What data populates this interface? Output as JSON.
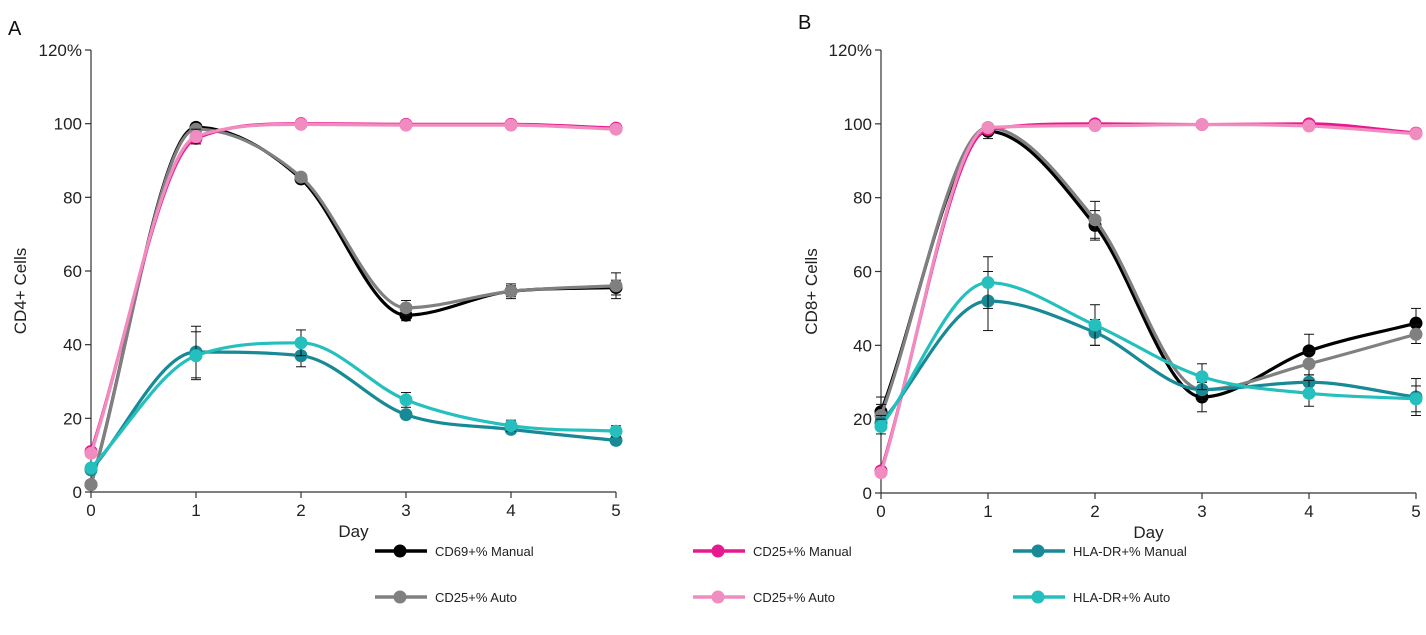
{
  "chart_data": [
    {
      "type": "line",
      "panel_label": "A",
      "xlabel": "Day",
      "ylabel": "CD4+ Cells",
      "x": [
        0,
        1,
        2,
        3,
        4,
        5
      ],
      "xlim": [
        0,
        5
      ],
      "ylim": [
        0,
        120
      ],
      "y_ticks": [
        0,
        20,
        40,
        60,
        80,
        100,
        120
      ],
      "y_tick_labels": [
        "0",
        "20",
        "40",
        "60",
        "80",
        "100",
        "120%"
      ],
      "grid": false,
      "series": [
        {
          "name": "CD69+% Manual",
          "color": "#000000",
          "values": [
            2,
            99,
            85,
            48,
            54.5,
            55.5
          ],
          "errors": [
            0,
            0,
            0,
            1.5,
            1.5,
            2
          ]
        },
        {
          "name": "CD25+% Auto",
          "color": "#808080",
          "values": [
            2,
            98.5,
            85.5,
            50,
            54.5,
            56
          ],
          "errors": [
            0,
            0,
            0,
            2,
            2,
            3.5
          ]
        },
        {
          "name": "CD25+% Manual",
          "color": "#e8188f",
          "values": [
            11,
            96,
            100,
            99.8,
            99.8,
            98.8
          ],
          "errors": [
            0,
            0,
            0,
            0,
            0,
            0
          ]
        },
        {
          "name": "CD25+% Auto",
          "color": "#f08cbf",
          "values": [
            10.5,
            96.5,
            99.8,
            99.6,
            99.6,
            98.5
          ],
          "errors": [
            0,
            2,
            0,
            0,
            0,
            0
          ]
        },
        {
          "name": "HLA-DR+% Manual",
          "color": "#178a96",
          "values": [
            6,
            38,
            37,
            21,
            17,
            14
          ],
          "errors": [
            0,
            7,
            3,
            1,
            1,
            1
          ]
        },
        {
          "name": "HLA-DR+% Auto",
          "color": "#25bfbd",
          "values": [
            6.5,
            37,
            40.5,
            25,
            18,
            16.5
          ],
          "errors": [
            0,
            6.5,
            3.5,
            2,
            1.5,
            1.5
          ]
        }
      ]
    },
    {
      "type": "line",
      "panel_label": "B",
      "xlabel": "Day",
      "ylabel": "CD8+ Cells",
      "x": [
        0,
        1,
        2,
        3,
        4,
        5
      ],
      "xlim": [
        0,
        5
      ],
      "ylim": [
        0,
        120
      ],
      "y_ticks": [
        0,
        20,
        40,
        60,
        80,
        100,
        120
      ],
      "y_tick_labels": [
        "0",
        "20",
        "40",
        "60",
        "80",
        "100",
        "120%"
      ],
      "grid": false,
      "series": [
        {
          "name": "CD69+% Manual",
          "color": "#000000",
          "values": [
            22,
            98,
            72.5,
            26,
            38.5,
            46
          ],
          "errors": [
            4,
            2,
            4,
            4,
            4.5,
            4
          ]
        },
        {
          "name": "CD25+% Auto",
          "color": "#808080",
          "values": [
            21,
            99,
            74,
            28,
            35,
            43
          ],
          "errors": [
            3,
            0,
            5,
            3,
            3,
            2.5
          ]
        },
        {
          "name": "CD25+% Manual",
          "color": "#e8188f",
          "values": [
            6,
            98.5,
            100,
            99.8,
            100,
            97.5
          ],
          "errors": [
            0,
            0,
            0,
            0,
            0,
            1
          ]
        },
        {
          "name": "CD25+% Auto",
          "color": "#f08cbf",
          "values": [
            5.5,
            99,
            99.5,
            99.8,
            99.4,
            97.3
          ],
          "errors": [
            0,
            0,
            0,
            0,
            0,
            0
          ]
        },
        {
          "name": "HLA-DR+% Manual",
          "color": "#178a96",
          "values": [
            19,
            52,
            43.5,
            28,
            30,
            26
          ],
          "errors": [
            2,
            8,
            3.5,
            2,
            2,
            5
          ]
        },
        {
          "name": "HLA-DR+% Auto",
          "color": "#25bfbd",
          "values": [
            18,
            57,
            45.5,
            31.5,
            27,
            25.5
          ],
          "errors": [
            2,
            7,
            5.5,
            3.5,
            3.5,
            3.5
          ]
        }
      ]
    }
  ],
  "legend": {
    "placement": "bottom",
    "items": [
      {
        "label": "CD69+% Manual",
        "color": "#000000"
      },
      {
        "label": "CD25+% Manual",
        "color": "#e8188f"
      },
      {
        "label": "HLA-DR+% Manual",
        "color": "#178a96"
      },
      {
        "label": "CD25+% Auto",
        "color": "#808080"
      },
      {
        "label": "CD25+% Auto",
        "color": "#f08cbf"
      },
      {
        "label": "HLA-DR+% Auto",
        "color": "#25bfbd"
      }
    ]
  }
}
